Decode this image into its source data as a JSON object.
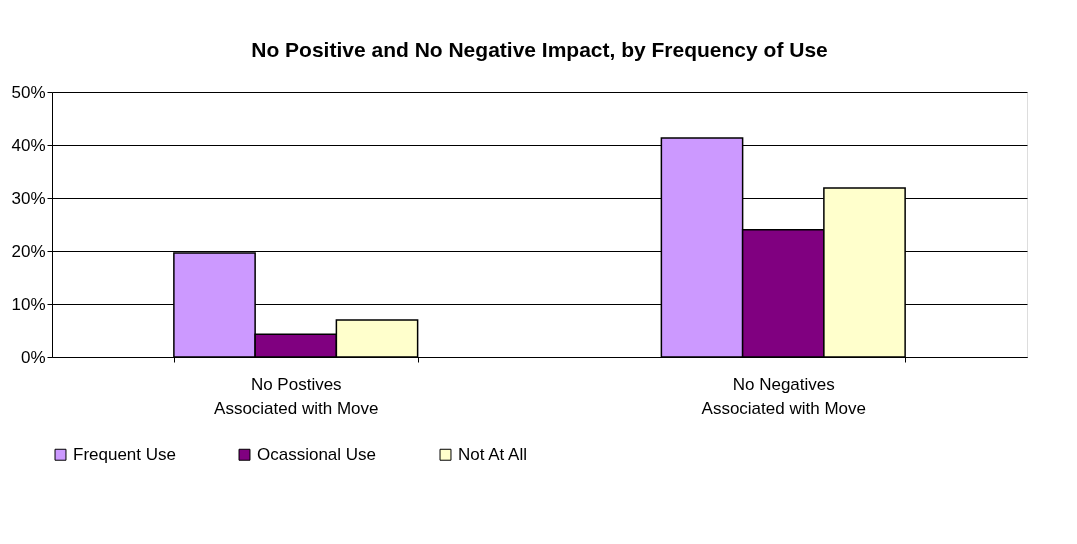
{
  "chart_data": {
    "type": "bar",
    "title": "No Positive and No Negative Impact, by Frequency of Use",
    "categories": [
      "No Postives\nAssociated with Move",
      "No Negatives\nAssociated with Move"
    ],
    "series": [
      {
        "name": "Frequent Use",
        "color": "#cc99ff",
        "values": [
          19.6,
          41.3
        ]
      },
      {
        "name": "Ocassional Use",
        "color": "#800080",
        "values": [
          4.3,
          24
        ]
      },
      {
        "name": "Not At All",
        "color": "#ffffcc",
        "values": [
          7,
          31.9
        ]
      }
    ],
    "ylim": [
      0,
      50
    ],
    "yticks": [
      {
        "value": 0,
        "label": "0%"
      },
      {
        "value": 10,
        "label": "10%"
      },
      {
        "value": 20,
        "label": "20%"
      },
      {
        "value": 30,
        "label": "30%"
      },
      {
        "value": 40,
        "label": "40%"
      },
      {
        "value": 50,
        "label": "50%"
      }
    ],
    "grid": "y",
    "legend": "bottom"
  }
}
